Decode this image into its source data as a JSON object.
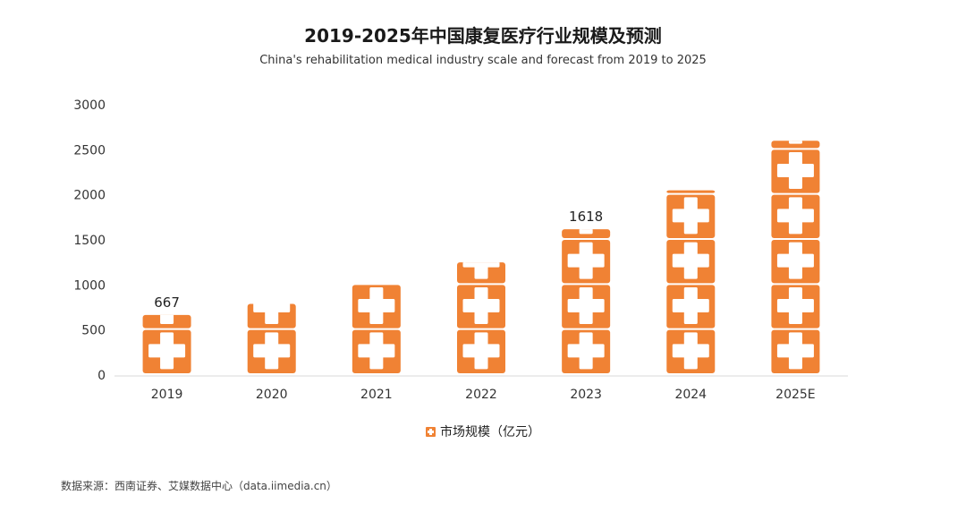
{
  "chart_data": {
    "type": "bar",
    "title": "2019-2025年中国康复医疗行业规模及预测",
    "subtitle": "China's rehabilitation medical industry scale and forecast from 2019 to 2025",
    "categories": [
      "2019",
      "2020",
      "2021",
      "2022",
      "2023",
      "2024",
      "2025E"
    ],
    "series": [
      {
        "name": "市场规模（亿元）",
        "values": [
          667,
          790,
          1000,
          1250,
          1618,
          2050,
          2600
        ],
        "data_labels": [
          "667",
          "",
          "",
          "",
          "1618",
          "",
          ""
        ]
      }
    ],
    "ylim": [
      0,
      3000
    ],
    "yticks": [
      0,
      500,
      1000,
      1500,
      2000,
      2500,
      3000
    ],
    "grid": false,
    "legend_position": "bottom",
    "bar_color": "#f08234"
  },
  "source": "数据来源：西南证券、艾媒数据中心（data.iimedia.cn）"
}
